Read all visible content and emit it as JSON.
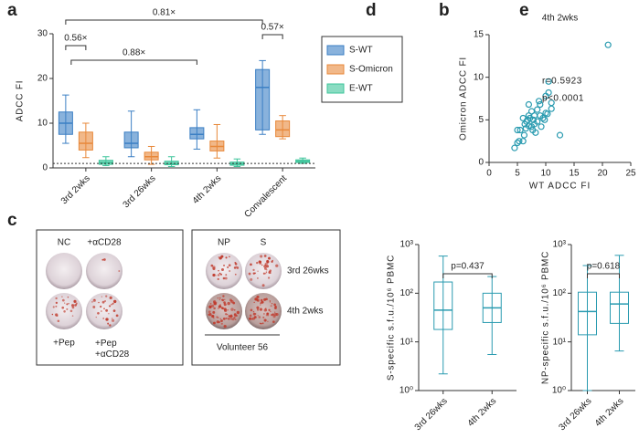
{
  "chart_data": [
    {
      "type": "box",
      "label": "a",
      "ylabel": "ADCC FI",
      "categories": [
        "3rd 2wks",
        "3rd 26wks",
        "4th 2wks",
        "Convalescent"
      ],
      "series": [
        {
          "name": "S-WT",
          "color": "#3b7fc4",
          "values": [
            [
              5.5,
              7.5,
              10,
              12.5,
              16.3
            ],
            [
              2.5,
              4.5,
              5.5,
              8,
              12.7
            ],
            [
              4.2,
              6.5,
              7.5,
              9,
              13
            ],
            [
              7.5,
              8.5,
              18,
              22,
              24
            ]
          ]
        },
        {
          "name": "S-Omicron",
          "color": "#e8883a",
          "values": [
            [
              2.3,
              4,
              5.5,
              8,
              10
            ],
            [
              0.8,
              1.8,
              2.5,
              3.5,
              4.8
            ],
            [
              2.2,
              3.8,
              4.8,
              6,
              9.7
            ],
            [
              6.5,
              7,
              8.5,
              10.5,
              11.7
            ]
          ]
        },
        {
          "name": "E-WT",
          "color": "#3cc49a",
          "values": [
            [
              0.5,
              0.8,
              1.2,
              1.7,
              2.5
            ],
            [
              0.3,
              0.7,
              1,
              1.5,
              2.5
            ],
            [
              0.3,
              0.6,
              0.9,
              1.3,
              2
            ],
            [
              1,
              1.2,
              1.5,
              1.8,
              2.2
            ]
          ]
        }
      ],
      "ylim": [
        0,
        30
      ],
      "yticks": [
        0,
        10,
        20,
        30
      ],
      "reference_line": 1,
      "legend": "right",
      "grid": false,
      "annotations": [
        "0.81×",
        "0.56×",
        "0.88×",
        "0.57×"
      ]
    },
    {
      "type": "scatter",
      "label": "b",
      "title": "4th 2wks",
      "xlabel": "WT ADCC FI",
      "ylabel": "Omicron ADCC FI",
      "color": "#2a9bb0",
      "x": [
        4.5,
        5,
        5.3,
        5.5,
        5,
        6,
        6.2,
        6.5,
        6.3,
        6.8,
        7,
        7,
        7.2,
        7.5,
        7.5,
        7.8,
        8,
        8,
        8.2,
        8.5,
        8.5,
        9,
        9,
        9.2,
        9.5,
        10,
        10,
        10.3,
        10.5,
        10.5,
        11,
        11,
        12.5,
        21,
        7,
        6,
        8.8,
        9.8,
        7.7,
        6.6
      ],
      "y": [
        1.7,
        2.3,
        2.5,
        3.8,
        3.8,
        2.5,
        3.2,
        4,
        4.5,
        5,
        4.3,
        5.5,
        5.2,
        4.2,
        6,
        5,
        4.5,
        5.5,
        3.5,
        6.2,
        4.8,
        5.5,
        6.8,
        4.2,
        5.2,
        7.8,
        5.8,
        5.7,
        8.2,
        9.5,
        6.3,
        7,
        3.2,
        13.8,
        6.8,
        5.2,
        7.2,
        5,
        3.8,
        4.8
      ],
      "xlim": [
        0,
        25
      ],
      "xticks": [
        0,
        5,
        10,
        15,
        20,
        25
      ],
      "ylim": [
        0,
        15
      ],
      "yticks": [
        0,
        5,
        10,
        15
      ],
      "annotations": [
        "r=0.5923",
        "p<0.0001"
      ]
    },
    {
      "type": "box",
      "label": "d",
      "ylabel": "S-specific s.f.u./10⁶ PBMC",
      "color": "#2a9bb0",
      "log": true,
      "categories": [
        "3rd 26wks",
        "4th 2wks"
      ],
      "values": [
        [
          2.2,
          18,
          45,
          170,
          580
        ],
        [
          5.5,
          25,
          50,
          100,
          220
        ]
      ],
      "ylim": [
        1,
        1000
      ],
      "yticks": [
        {
          "value": 1,
          "label": "10⁰"
        },
        {
          "value": 10,
          "label": "10¹"
        },
        {
          "value": 100,
          "label": "10²"
        },
        {
          "value": 1000,
          "label": "10³"
        }
      ],
      "annotations": [
        "p=0.437"
      ]
    },
    {
      "type": "box",
      "label": "e",
      "ylabel": "NP-specific s.f.u./10⁶ PBMC",
      "color": "#2a9bb0",
      "log": true,
      "categories": [
        "3rd 26wks",
        "4th 2wks"
      ],
      "values": [
        [
          1,
          14,
          42,
          105,
          370
        ],
        [
          6.5,
          24,
          60,
          105,
          600
        ]
      ],
      "ylim": [
        1,
        1000
      ],
      "yticks": [
        {
          "value": 1,
          "label": "10⁰"
        },
        {
          "value": 10,
          "label": "10¹"
        },
        {
          "value": 100,
          "label": "10²"
        },
        {
          "value": 1000,
          "label": "10³"
        }
      ],
      "annotations": [
        "p=0.618"
      ]
    }
  ],
  "panel_c": {
    "label": "c",
    "left_top": [
      "NC",
      "+αCD28"
    ],
    "left_bottom": [
      "+Pep",
      "+Pep\n+αCD28"
    ],
    "right_columns": [
      "NP",
      "S"
    ],
    "right_rows": [
      "3rd 26wks",
      "4th 2wks"
    ],
    "right_caption": "Volunteer 56"
  }
}
